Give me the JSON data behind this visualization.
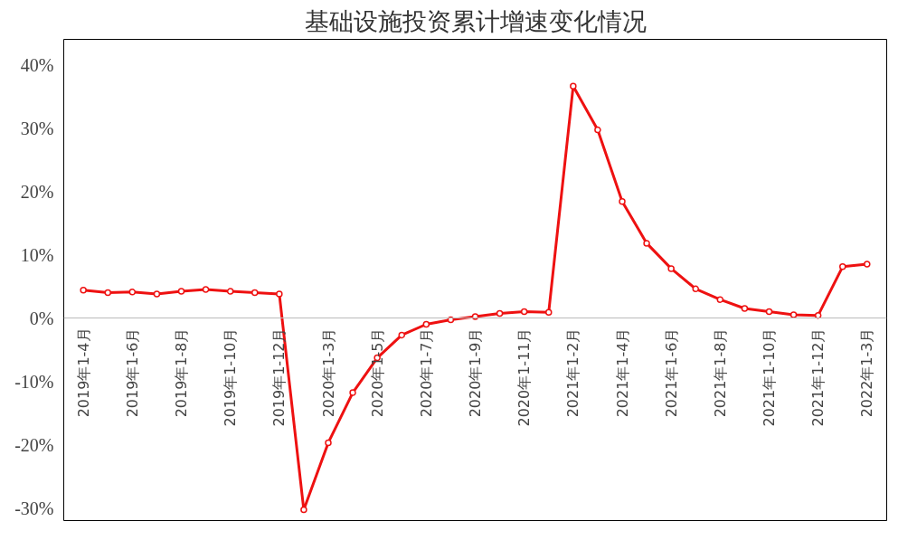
{
  "chart_data": {
    "type": "line",
    "title": "基础设施投资累计增速变化情况",
    "categories": [
      "2019年1-4月",
      null,
      "2019年1-6月",
      null,
      "2019年1-8月",
      null,
      "2019年1-10月",
      null,
      "2019年1-12月",
      null,
      "2020年1-3月",
      null,
      "2020年1-5月",
      null,
      "2020年1-7月",
      null,
      "2020年1-9月",
      null,
      "2020年1-11月",
      null,
      "2021年1-2月",
      null,
      "2021年1-4月",
      null,
      "2021年1-6月",
      null,
      "2021年1-8月",
      null,
      "2021年1-10月",
      null,
      "2021年1-12月",
      null,
      "2022年1-3月"
    ],
    "series": [
      {
        "color": "#ee1111",
        "values": [
          4.4,
          4.0,
          4.1,
          3.8,
          4.2,
          4.5,
          4.2,
          4.0,
          3.8,
          -30.3,
          -19.7,
          -11.8,
          -6.3,
          -2.7,
          -1.0,
          -0.3,
          0.2,
          0.7,
          1.0,
          0.9,
          36.6,
          29.7,
          18.4,
          11.8,
          7.8,
          4.6,
          2.9,
          1.5,
          1.0,
          0.5,
          0.4,
          8.1,
          8.5
        ]
      }
    ],
    "ylim": [
      -32,
      44
    ],
    "yticks": [
      {
        "value": -30,
        "label": "-30%"
      },
      {
        "value": -20,
        "label": "-20%"
      },
      {
        "value": -10,
        "label": "-10%"
      },
      {
        "value": 0,
        "label": "0%"
      },
      {
        "value": 10,
        "label": "10%"
      },
      {
        "value": 20,
        "label": "20%"
      },
      {
        "value": 30,
        "label": "30%"
      },
      {
        "value": 40,
        "label": "40%"
      }
    ],
    "grid": false,
    "marker": "circle",
    "line_style": "solid"
  }
}
